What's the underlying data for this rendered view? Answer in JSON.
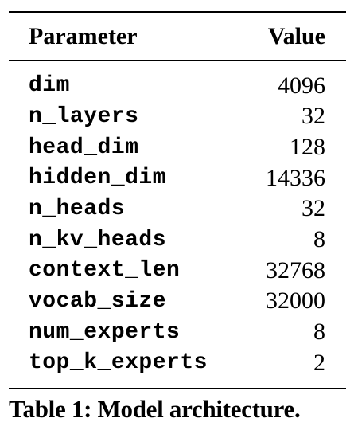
{
  "table": {
    "headers": {
      "parameter": "Parameter",
      "value": "Value"
    },
    "rows": [
      {
        "parameter": "dim",
        "value": "4096"
      },
      {
        "parameter": "n_layers",
        "value": "32"
      },
      {
        "parameter": "head_dim",
        "value": "128"
      },
      {
        "parameter": "hidden_dim",
        "value": "14336"
      },
      {
        "parameter": "n_heads",
        "value": "32"
      },
      {
        "parameter": "n_kv_heads",
        "value": "8"
      },
      {
        "parameter": "context_len",
        "value": "32768"
      },
      {
        "parameter": "vocab_size",
        "value": "32000"
      },
      {
        "parameter": "num_experts",
        "value": "8"
      },
      {
        "parameter": "top_k_experts",
        "value": "2"
      }
    ]
  },
  "caption": "Table 1: Model architecture."
}
